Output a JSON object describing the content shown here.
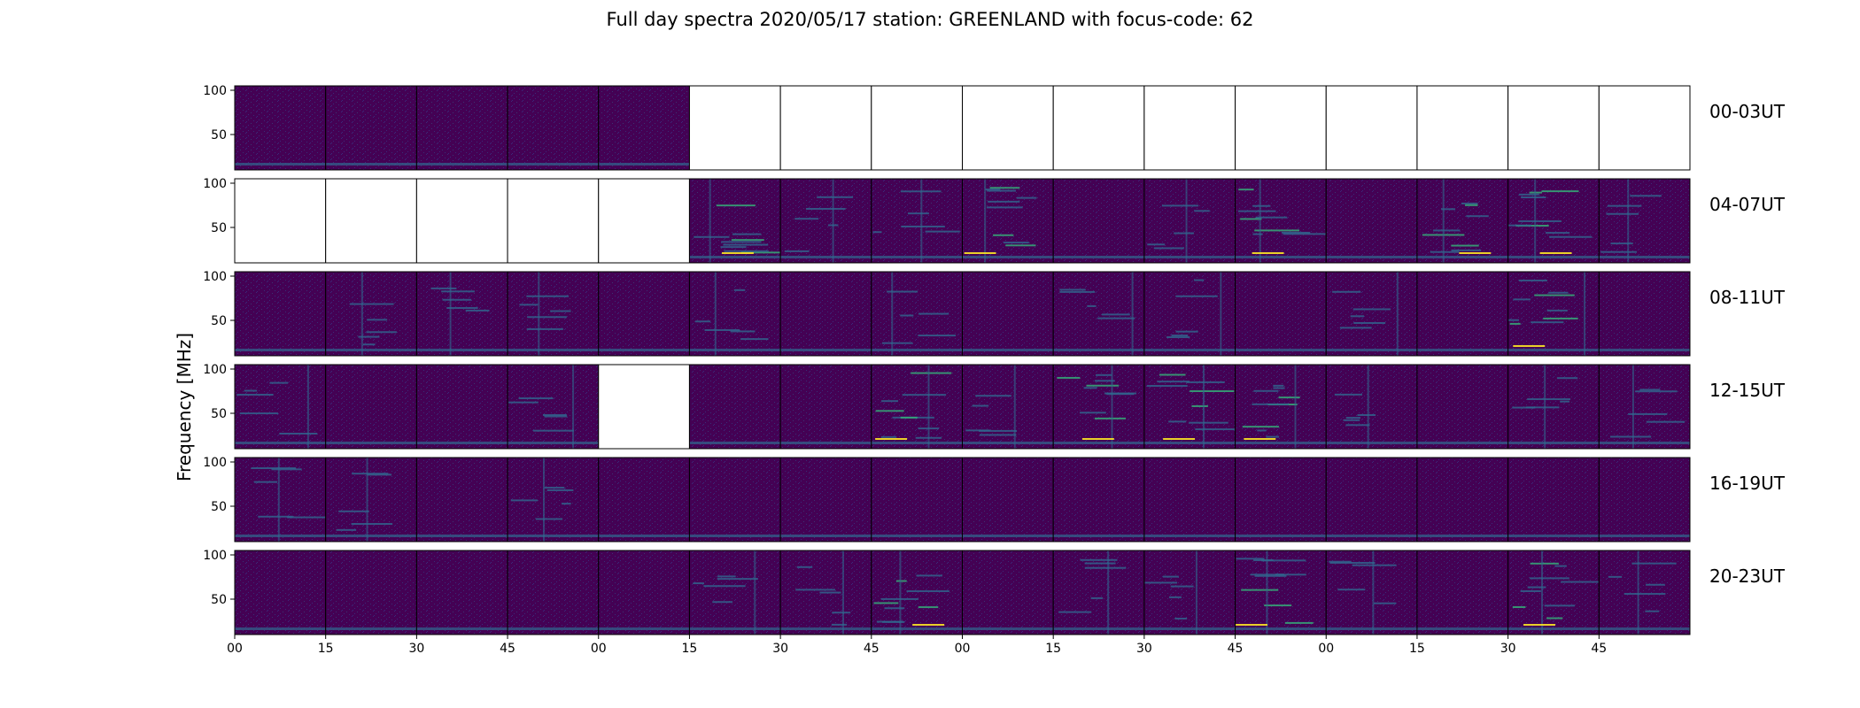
{
  "chart_data": {
    "type": "heatmap",
    "title": "Full day spectra 2020/05/17 station: GREENLAND with focus-code: 62",
    "ylabel": "Frequency [MHz]",
    "xlabel": "",
    "y_ticks": [
      50,
      100
    ],
    "x_ticks": [
      "00",
      "15",
      "30",
      "45",
      "00",
      "15",
      "30",
      "45",
      "00",
      "15",
      "30",
      "45",
      "00",
      "15",
      "30",
      "45"
    ],
    "colormap": "viridis",
    "colors": {
      "background": "#440154",
      "mid": "#31688e",
      "high": "#35b779",
      "peak": "#fde725"
    },
    "rows": [
      {
        "label": "00-03UT",
        "panel_intensity": [
          1,
          1,
          1,
          1,
          1,
          0,
          0,
          0,
          0,
          0,
          0,
          0,
          0,
          0,
          0,
          0
        ]
      },
      {
        "label": "04-07UT",
        "panel_intensity": [
          0,
          0,
          0,
          0,
          0,
          3,
          2,
          2,
          3,
          1,
          2,
          3,
          1,
          3,
          3,
          2
        ]
      },
      {
        "label": "08-11UT",
        "panel_intensity": [
          1,
          2,
          2,
          2,
          1,
          2,
          1,
          2,
          1,
          2,
          2,
          1,
          2,
          1,
          3,
          1
        ]
      },
      {
        "label": "12-15UT",
        "panel_intensity": [
          2,
          1,
          1,
          2,
          0,
          1,
          1,
          3,
          2,
          3,
          3,
          3,
          2,
          1,
          2,
          2
        ]
      },
      {
        "label": "16-19UT",
        "panel_intensity": [
          2,
          2,
          1,
          2,
          1,
          1,
          1,
          1,
          1,
          1,
          1,
          1,
          1,
          1,
          1,
          1
        ]
      },
      {
        "label": "20-23UT",
        "panel_intensity": [
          1,
          1,
          1,
          1,
          1,
          2,
          2,
          3,
          1,
          2,
          2,
          3,
          2,
          1,
          3,
          2
        ]
      }
    ]
  }
}
